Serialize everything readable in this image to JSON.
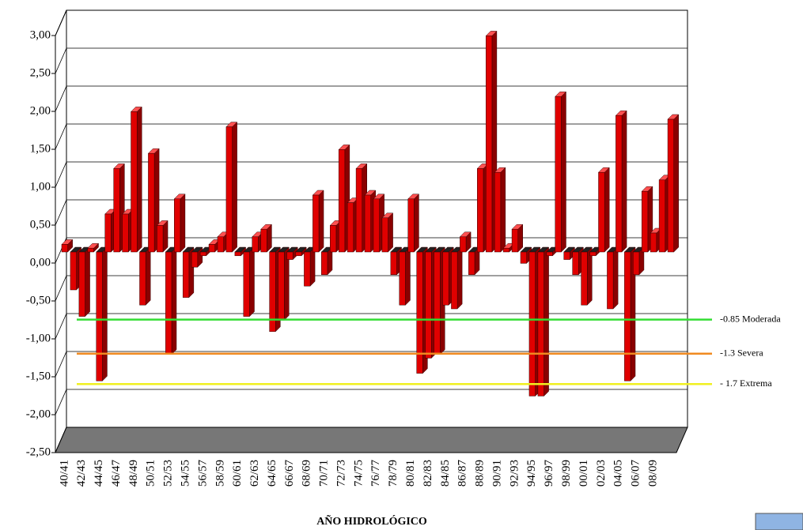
{
  "chart_data": {
    "type": "bar3d",
    "x_label": "AÑO HIDROLÓGICO",
    "categories": [
      "40/41",
      null,
      "42/43",
      null,
      "44/45",
      null,
      "46/47",
      null,
      "48/49",
      null,
      "50/51",
      null,
      "52/53",
      null,
      "54/55",
      null,
      "56/57",
      null,
      "58/59",
      null,
      "60/61",
      null,
      "62/63",
      null,
      "64/65",
      null,
      "66/67",
      null,
      "68/69",
      null,
      "70/71",
      null,
      "72/73",
      null,
      "74/75",
      null,
      "76/77",
      null,
      "78/79",
      null,
      "80/81",
      null,
      "82/83",
      null,
      "84/85",
      null,
      "86/87",
      null,
      "88/89",
      null,
      "90/91",
      null,
      "92/93",
      null,
      "94/95",
      null,
      "96/97",
      null,
      "98/99",
      null,
      "00/01",
      null,
      "02/03",
      null,
      "04/05",
      null,
      "06/07",
      null,
      "08/09",
      null,
      null
    ],
    "values": [
      0.1,
      -0.5,
      -0.85,
      0.05,
      -1.7,
      0.5,
      1.1,
      0.5,
      1.85,
      -0.7,
      1.3,
      0.35,
      -1.35,
      0.7,
      -0.6,
      -0.2,
      -0.05,
      0.1,
      0.2,
      1.65,
      -0.05,
      -0.85,
      0.2,
      0.3,
      -1.05,
      -0.9,
      -0.1,
      -0.05,
      -0.45,
      0.75,
      -0.3,
      0.35,
      1.35,
      0.65,
      1.1,
      0.75,
      0.7,
      0.45,
      -0.3,
      -0.7,
      0.7,
      -1.6,
      -1.4,
      -1.35,
      -0.7,
      -0.75,
      0.2,
      -0.3,
      1.1,
      2.85,
      1.05,
      0.05,
      0.3,
      -0.15,
      -1.9,
      -1.9,
      -0.05,
      2.05,
      -0.1,
      -0.3,
      -0.7,
      -0.05,
      1.05,
      -0.75,
      1.8,
      -1.7,
      -0.3,
      0.8,
      0.25,
      0.95,
      1.75
    ],
    "color": "#e00000",
    "ylim": [
      -2.5,
      3.0
    ],
    "yticks": [
      {
        "value": -2.5,
        "label": "-2,50"
      },
      {
        "value": -2.0,
        "label": "-2,00"
      },
      {
        "value": -1.5,
        "label": "-1,50"
      },
      {
        "value": -1.0,
        "label": "-1,00"
      },
      {
        "value": -0.5,
        "label": "-0,50"
      },
      {
        "value": 0,
        "label": "0,00"
      },
      {
        "value": 0.5,
        "label": "0,50"
      },
      {
        "value": 1.0,
        "label": "1,00"
      },
      {
        "value": 1.5,
        "label": "1,50"
      },
      {
        "value": 2.0,
        "label": "2,00"
      },
      {
        "value": 2.5,
        "label": "2,50"
      },
      {
        "value": 3.0,
        "label": "3,00"
      }
    ],
    "grid": true,
    "reference_lines": [
      {
        "value": -0.85,
        "label": "-0.85 Moderada",
        "color": "#33dd33"
      },
      {
        "value": -1.3,
        "label": "-1.3 Severa",
        "color": "#f08a20"
      },
      {
        "value": -1.7,
        "label": "- 1.7 Extrema",
        "color": "#f0f020"
      }
    ]
  }
}
